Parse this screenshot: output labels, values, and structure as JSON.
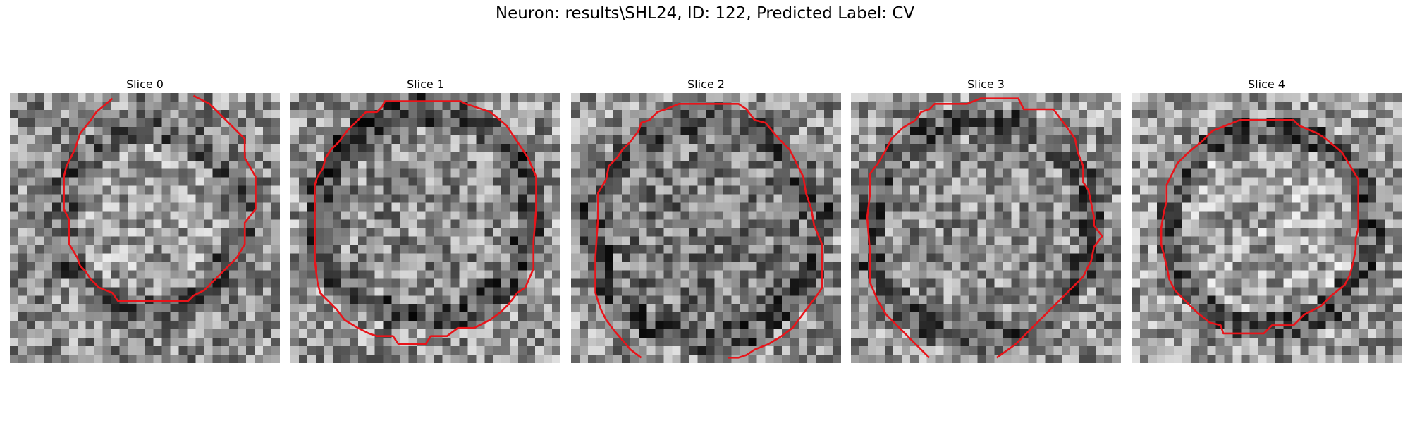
{
  "figure": {
    "title": "Neuron: results\\SHL24, ID: 122, Predicted Label: CV"
  },
  "panels": [
    {
      "title": "Slice 0"
    },
    {
      "title": "Slice 1"
    },
    {
      "title": "Slice 2"
    },
    {
      "title": "Slice 3"
    },
    {
      "title": "Slice 4"
    }
  ],
  "style": {
    "contour_color": "#e8141a",
    "colormap": "grayscale"
  }
}
